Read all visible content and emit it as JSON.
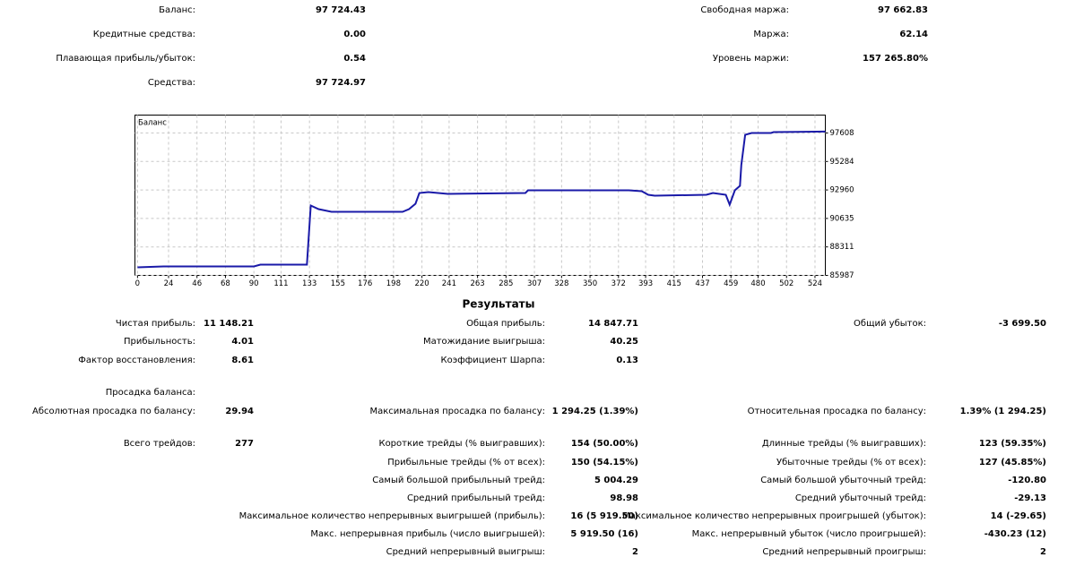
{
  "summary": {
    "left": [
      {
        "label": "Баланс:",
        "value": "97 724.43"
      },
      {
        "label": "Кредитные средства:",
        "value": "0.00"
      },
      {
        "label": "Плавающая прибыль/убыток:",
        "value": "0.54"
      },
      {
        "label": "Средства:",
        "value": "97 724.97"
      }
    ],
    "right": [
      {
        "label": "Свободная маржа:",
        "value": "97 662.83"
      },
      {
        "label": "Маржа:",
        "value": "62.14"
      },
      {
        "label": "Уровень маржи:",
        "value": "157 265.80%"
      }
    ]
  },
  "chart_data": {
    "type": "line",
    "title": "Баланс",
    "x": [
      0,
      20,
      90,
      95,
      131,
      134,
      140,
      150,
      205,
      210,
      215,
      218,
      225,
      240,
      300,
      302,
      380,
      390,
      395,
      400,
      440,
      445,
      455,
      458,
      462,
      466,
      467,
      470,
      475,
      490,
      492,
      532
    ],
    "values": [
      86645,
      86718,
      86720,
      86864,
      86864,
      91688,
      91396,
      91176,
      91176,
      91396,
      91834,
      92711,
      92784,
      92638,
      92711,
      92930,
      92930,
      92857,
      92565,
      92492,
      92565,
      92711,
      92565,
      91761,
      92930,
      93296,
      95000,
      97462,
      97608,
      97608,
      97681,
      97724
    ],
    "color": "#1a1aa8",
    "xlim": [
      -2,
      532
    ],
    "ylim": [
      85987,
      99070
    ],
    "xticks": [
      0,
      24,
      46,
      68,
      90,
      111,
      133,
      155,
      176,
      198,
      220,
      241,
      263,
      285,
      307,
      328,
      350,
      372,
      393,
      415,
      437,
      459,
      480,
      502,
      524
    ],
    "yticks": [
      85987,
      88311,
      90635,
      92960,
      95284,
      97608
    ],
    "grid": true
  },
  "results": {
    "title": "Результаты",
    "rows": [
      {
        "left": {
          "label": "Чистая прибыль:",
          "value": "11 148.21"
        },
        "middle": {
          "label": "Общая прибыль:",
          "value": "14 847.71"
        },
        "right": {
          "label": "Общий убыток:",
          "value": "-3 699.50"
        }
      },
      {
        "left": {
          "label": "Прибыльность:",
          "value": "4.01"
        },
        "middle": {
          "label": "Матожидание выигрыша:",
          "value": "40.25"
        }
      },
      {
        "left": {
          "label": "Фактор восстановления:",
          "value": "8.61"
        },
        "middle": {
          "label": "Коэффициент Шарпа:",
          "value": "0.13"
        }
      },
      {
        "left": {
          "label": "Просадка баланса:"
        }
      },
      {
        "left": {
          "label": "Абсолютная просадка по балансу:",
          "value": "29.94"
        },
        "middle": {
          "label": "Максимальная просадка по балансу:",
          "value": "1 294.25 (1.39%)"
        },
        "right": {
          "label": "Относительная просадка по балансу:",
          "value": "1.39% (1 294.25)"
        }
      },
      {
        "left": {
          "label": "Всего трейдов:",
          "value": "277"
        },
        "middle": {
          "label": "Короткие трейды (% выигравших):",
          "value": "154 (50.00%)"
        },
        "right": {
          "label": "Длинные трейды (% выигравших):",
          "value": "123 (59.35%)"
        }
      },
      {
        "middle": {
          "label": "Прибыльные трейды (% от всех):",
          "value": "150 (54.15%)"
        },
        "right": {
          "label": "Убыточные трейды (% от всех):",
          "value": "127 (45.85%)"
        }
      },
      {
        "middle": {
          "label": "Самый большой прибыльный трейд:",
          "value": "5 004.29"
        },
        "right": {
          "label": "Самый большой убыточный трейд:",
          "value": "-120.80"
        }
      },
      {
        "middle": {
          "label": "Средний прибыльный трейд:",
          "value": "98.98"
        },
        "right": {
          "label": "Средний убыточный трейд:",
          "value": "-29.13"
        }
      },
      {
        "middle": {
          "label": "Максимальное количество непрерывных выигрышей (прибыль):",
          "value": "16 (5 919.50)"
        },
        "right": {
          "label": "Максимальное количество непрерывных проигрышей (убыток):",
          "value": "14 (-29.65)"
        }
      },
      {
        "middle": {
          "label": "Макс. непрерывная прибыль (число выигрышей):",
          "value": "5 919.50 (16)"
        },
        "right": {
          "label": "Макс. непрерывный убыток (число проигрышей):",
          "value": "-430.23 (12)"
        }
      },
      {
        "middle": {
          "label": "Средний непрерывный выигрыш:",
          "value": "2"
        },
        "right": {
          "label": "Средний непрерывный проигрыш:",
          "value": "2"
        }
      }
    ]
  }
}
